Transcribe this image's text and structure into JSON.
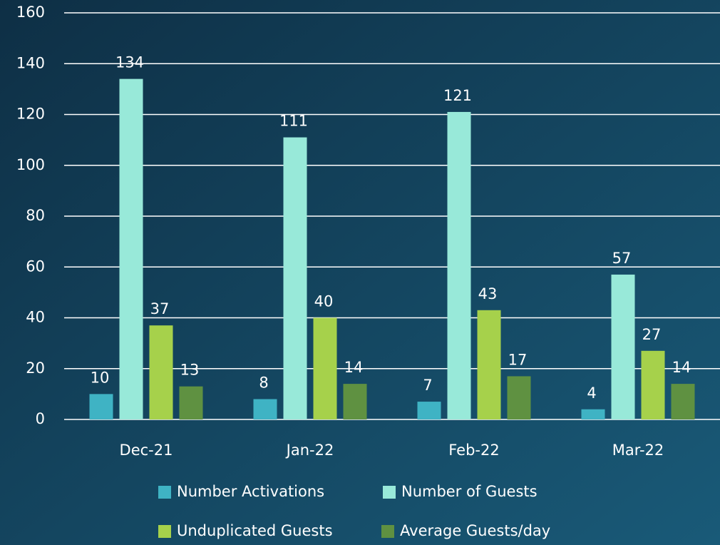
{
  "chart_data": {
    "type": "bar",
    "categories": [
      "Dec-21",
      "Jan-22",
      "Feb-22",
      "Mar-22"
    ],
    "series": [
      {
        "name": "Number Activations",
        "color": "#3fb3c4",
        "values": [
          10,
          8,
          7,
          4
        ]
      },
      {
        "name": "Number of Guests",
        "color": "#98e9d9",
        "values": [
          134,
          111,
          121,
          57
        ]
      },
      {
        "name": "Unduplicated Guests",
        "color": "#a6d14b",
        "values": [
          37,
          40,
          43,
          27
        ]
      },
      {
        "name": "Average Guests/day",
        "color": "#5f9141",
        "values": [
          13,
          14,
          17,
          14
        ]
      }
    ],
    "ylim": [
      0,
      160
    ],
    "yticks": [
      0,
      20,
      40,
      60,
      80,
      100,
      120,
      140,
      160
    ],
    "grid": true,
    "legend": "bottom"
  }
}
